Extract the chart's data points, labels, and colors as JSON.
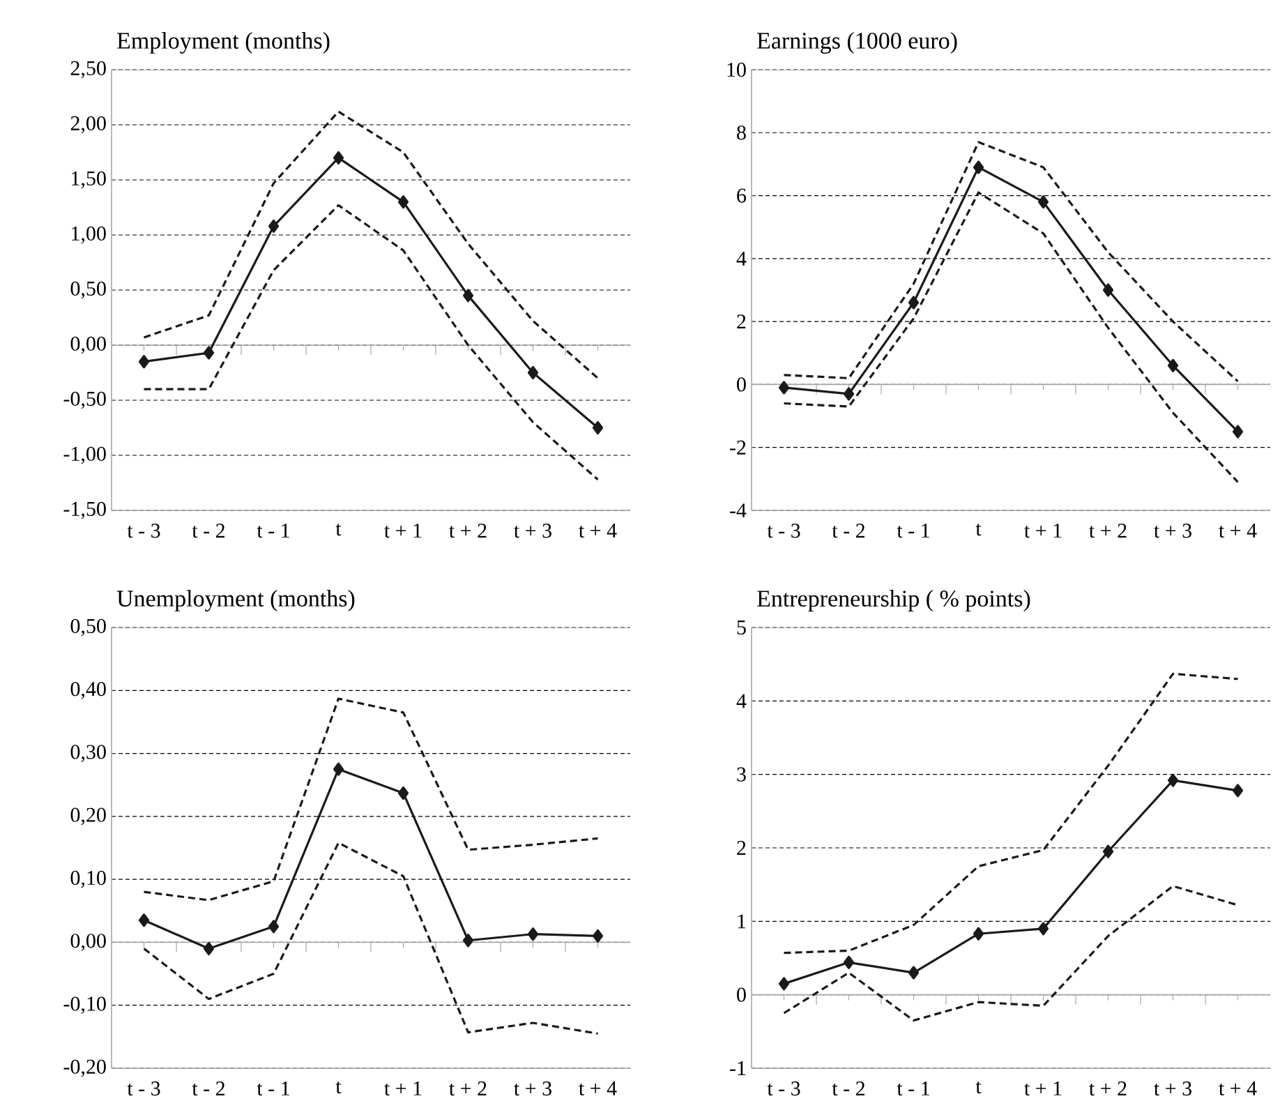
{
  "chart_data": [
    {
      "type": "line",
      "title": "Employment (months)",
      "categories": [
        "t - 3",
        "t - 2",
        "t - 1",
        "t",
        "t + 1",
        "t + 2",
        "t + 3",
        "t + 4"
      ],
      "ylim": [
        -1.5,
        2.5
      ],
      "yticks": [
        {
          "value": -1.5,
          "label": "-1,50"
        },
        {
          "value": -1.0,
          "label": "-1,00"
        },
        {
          "value": -0.5,
          "label": "-0,50"
        },
        {
          "value": 0,
          "label": "0,00"
        },
        {
          "value": 0.5,
          "label": "0,50"
        },
        {
          "value": 1.0,
          "label": "1,00"
        },
        {
          "value": 1.5,
          "label": "1,50"
        },
        {
          "value": 2.0,
          "label": "2,00"
        },
        {
          "value": 2.5,
          "label": "2,50"
        }
      ],
      "grid": "y",
      "series": [
        {
          "color": "#1a1a1a",
          "marker": "diamond",
          "line_style": "solid",
          "values": [
            -0.15,
            -0.07,
            1.08,
            1.7,
            1.3,
            0.45,
            -0.25,
            -0.75
          ]
        },
        {
          "color": "#1a1a1a",
          "marker": "none",
          "line_style": "dashed",
          "values": [
            0.07,
            0.27,
            1.47,
            2.12,
            1.75,
            0.92,
            0.22,
            -0.3
          ]
        },
        {
          "color": "#1a1a1a",
          "marker": "none",
          "line_style": "dashed",
          "values": [
            -0.4,
            -0.4,
            0.68,
            1.27,
            0.86,
            0.0,
            -0.7,
            -1.22
          ]
        }
      ]
    },
    {
      "type": "line",
      "title": "Earnings (1000 euro)",
      "categories": [
        "t - 3",
        "t - 2",
        "t - 1",
        "t",
        "t + 1",
        "t + 2",
        "t + 3",
        "t + 4"
      ],
      "ylim": [
        -4,
        10
      ],
      "yticks": [
        -4,
        -2,
        0,
        2,
        4,
        6,
        8,
        10
      ],
      "grid": "y",
      "series": [
        {
          "color": "#1a1a1a",
          "marker": "diamond",
          "line_style": "solid",
          "values": [
            -0.1,
            -0.3,
            2.6,
            6.9,
            5.8,
            3.0,
            0.6,
            -1.5
          ]
        },
        {
          "color": "#1a1a1a",
          "marker": "none",
          "line_style": "dashed",
          "values": [
            0.3,
            0.2,
            3.2,
            7.7,
            6.9,
            4.2,
            2.0,
            0.1
          ]
        },
        {
          "color": "#1a1a1a",
          "marker": "none",
          "line_style": "dashed",
          "values": [
            -0.6,
            -0.7,
            2.1,
            6.1,
            4.8,
            1.8,
            -0.9,
            -3.1
          ]
        }
      ]
    },
    {
      "type": "line",
      "title": "Unemployment (months)",
      "categories": [
        "t - 3",
        "t - 2",
        "t - 1",
        "t",
        "t + 1",
        "t + 2",
        "t + 3",
        "t + 4"
      ],
      "ylim": [
        -0.2,
        0.5
      ],
      "yticks": [
        {
          "value": -0.2,
          "label": "-0,20"
        },
        {
          "value": -0.1,
          "label": "-0,10"
        },
        {
          "value": 0,
          "label": "0,00"
        },
        {
          "value": 0.1,
          "label": "0,10"
        },
        {
          "value": 0.2,
          "label": "0,20"
        },
        {
          "value": 0.3,
          "label": "0,30"
        },
        {
          "value": 0.4,
          "label": "0,40"
        },
        {
          "value": 0.5,
          "label": "0,50"
        }
      ],
      "grid": "y",
      "series": [
        {
          "color": "#1a1a1a",
          "marker": "diamond",
          "line_style": "solid",
          "values": [
            0.035,
            -0.01,
            0.025,
            0.275,
            0.237,
            0.003,
            0.013,
            0.01
          ]
        },
        {
          "color": "#1a1a1a",
          "marker": "none",
          "line_style": "dashed",
          "values": [
            0.08,
            0.067,
            0.097,
            0.387,
            0.365,
            0.147,
            0.155,
            0.165
          ]
        },
        {
          "color": "#1a1a1a",
          "marker": "none",
          "line_style": "dashed",
          "values": [
            -0.01,
            -0.09,
            -0.05,
            0.158,
            0.105,
            -0.143,
            -0.128,
            -0.145
          ]
        }
      ]
    },
    {
      "type": "line",
      "title": "Entrepreneurship ( % points)",
      "categories": [
        "t - 3",
        "t - 2",
        "t - 1",
        "t",
        "t + 1",
        "t + 2",
        "t + 3",
        "t + 4"
      ],
      "ylim": [
        -1,
        5
      ],
      "yticks": [
        -1,
        0,
        1,
        2,
        3,
        4,
        5
      ],
      "grid": "y",
      "series": [
        {
          "color": "#1a1a1a",
          "marker": "diamond",
          "line_style": "solid",
          "values": [
            0.15,
            0.44,
            0.3,
            0.83,
            0.9,
            1.95,
            2.92,
            2.78
          ]
        },
        {
          "color": "#1a1a1a",
          "marker": "none",
          "line_style": "dashed",
          "values": [
            0.57,
            0.6,
            0.95,
            1.75,
            1.97,
            3.12,
            4.37,
            4.3
          ]
        },
        {
          "color": "#1a1a1a",
          "marker": "none",
          "line_style": "dashed",
          "values": [
            -0.25,
            0.3,
            -0.35,
            -0.1,
            -0.15,
            0.8,
            1.48,
            1.22
          ]
        }
      ]
    }
  ]
}
